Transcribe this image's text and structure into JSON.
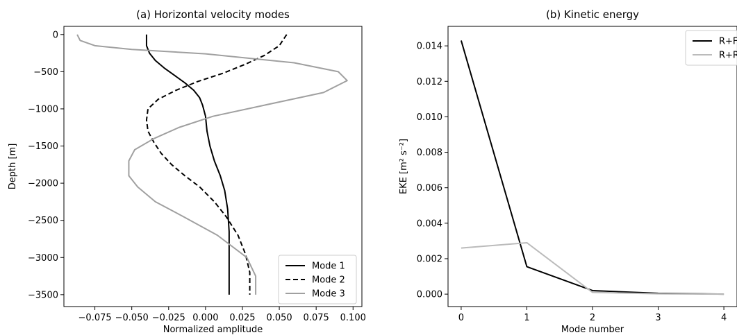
{
  "chart_data": [
    {
      "type": "line",
      "title": "(a) Horizontal velocity modes",
      "xlabel": "Normalized amplitude",
      "ylabel": "Depth [m]",
      "xlim": [
        -0.096,
        0.106
      ],
      "ylim": [
        -3660,
        110
      ],
      "xticks": [
        -0.075,
        -0.05,
        -0.025,
        0.0,
        0.025,
        0.05,
        0.075,
        0.1
      ],
      "xtick_labels": [
        "−0.075",
        "−0.050",
        "−0.025",
        "0.000",
        "0.025",
        "0.050",
        "0.075",
        "0.100"
      ],
      "yticks": [
        0,
        -500,
        -1000,
        -1500,
        -2000,
        -2500,
        -3000,
        -3500
      ],
      "ytick_labels": [
        "0",
        "−500",
        "−1000",
        "−1500",
        "−2000",
        "−2500",
        "−3000",
        "−3500"
      ],
      "legend_position": "lower-right",
      "series": [
        {
          "name": "Mode 1",
          "color": "#000000",
          "dash": "solid",
          "x": [
            -0.04,
            -0.04,
            -0.038,
            -0.034,
            -0.028,
            -0.021,
            -0.014,
            -0.008,
            -0.004,
            -0.002,
            0.0,
            0.001,
            0.003,
            0.006,
            0.01,
            0.013,
            0.015,
            0.016,
            0.016,
            0.016,
            0.016,
            0.016
          ],
          "y": [
            0,
            -150,
            -250,
            -350,
            -450,
            -550,
            -650,
            -750,
            -850,
            -950,
            -1100,
            -1300,
            -1500,
            -1700,
            -1900,
            -2100,
            -2350,
            -2650,
            -2900,
            -3100,
            -3300,
            -3500
          ]
        },
        {
          "name": "Mode 2",
          "color": "#000000",
          "dash": "dashed",
          "x": [
            0.055,
            0.05,
            0.04,
            0.027,
            0.012,
            -0.005,
            -0.02,
            -0.032,
            -0.039,
            -0.04,
            -0.039,
            -0.035,
            -0.03,
            -0.023,
            -0.014,
            -0.004,
            0.006,
            0.014,
            0.022,
            0.027,
            0.03,
            0.03
          ],
          "y": [
            0,
            -150,
            -280,
            -400,
            -520,
            -630,
            -750,
            -870,
            -1000,
            -1150,
            -1300,
            -1450,
            -1600,
            -1750,
            -1900,
            -2050,
            -2250,
            -2450,
            -2700,
            -2950,
            -3200,
            -3500
          ]
        },
        {
          "name": "Mode 3",
          "color": "#a0a0a0",
          "dash": "solid",
          "x": [
            -0.087,
            -0.085,
            -0.075,
            -0.05,
            0.0,
            0.06,
            0.09,
            0.096,
            0.08,
            0.04,
            0.005,
            -0.018,
            -0.035,
            -0.048,
            -0.052,
            -0.052,
            -0.046,
            -0.034,
            -0.015,
            0.008,
            0.028,
            0.034,
            0.034
          ],
          "y": [
            0,
            -80,
            -150,
            -200,
            -260,
            -380,
            -500,
            -620,
            -780,
            -950,
            -1100,
            -1250,
            -1400,
            -1550,
            -1700,
            -1900,
            -2050,
            -2250,
            -2450,
            -2700,
            -3000,
            -3250,
            -3500
          ]
        }
      ]
    },
    {
      "type": "line",
      "title": "(b) Kinetic energy",
      "xlabel": "Mode number",
      "ylabel": "EKE [m² s⁻²]",
      "xlim": [
        -0.2,
        4.2
      ],
      "ylim": [
        -0.0007,
        0.0151
      ],
      "xticks": [
        0,
        1,
        2,
        3,
        4
      ],
      "xtick_labels": [
        "0",
        "1",
        "2",
        "3",
        "4"
      ],
      "yticks": [
        0.0,
        0.002,
        0.004,
        0.006,
        0.008,
        0.01,
        0.012,
        0.014
      ],
      "ytick_labels": [
        "0.000",
        "0.002",
        "0.004",
        "0.006",
        "0.008",
        "0.010",
        "0.012",
        "0.014"
      ],
      "legend_position": "upper-right",
      "series": [
        {
          "name": "R+F",
          "color": "#000000",
          "dash": "solid",
          "x": [
            0,
            1,
            2,
            3,
            4
          ],
          "y": [
            0.0143,
            0.00155,
            0.0002,
            5e-05,
            0.0
          ]
        },
        {
          "name": "R+R",
          "color": "#bbbbbb",
          "dash": "solid",
          "x": [
            0,
            1,
            2,
            3,
            4
          ],
          "y": [
            0.0026,
            0.0029,
            0.0001,
            2e-05,
            0.0
          ]
        }
      ]
    }
  ]
}
